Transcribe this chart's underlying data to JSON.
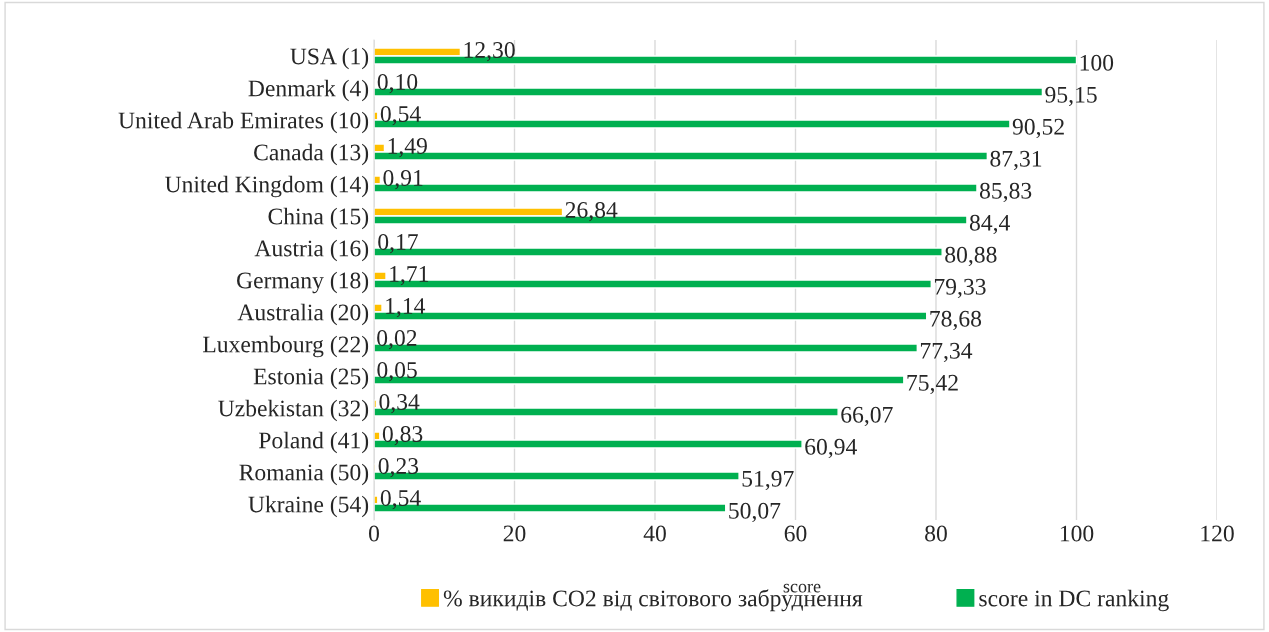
{
  "chart_data": {
    "type": "bar",
    "orientation": "horizontal",
    "categories": [
      "USA (1)",
      "Denmark (4)",
      "United Arab Emirates (10)",
      "Canada (13)",
      "United Kingdom (14)",
      "China (15)",
      "Austria (16)",
      "Germany (18)",
      "Australia (20)",
      "Luxembourg (22)",
      "Estonia (25)",
      "Uzbekistan (32)",
      "Poland (41)",
      "Romania (50)",
      "Ukraine (54)"
    ],
    "series": [
      {
        "name": "% викидів CO2 від світового забруднення",
        "color": "#ffc000",
        "values": [
          12.3,
          0.1,
          0.54,
          1.49,
          0.91,
          26.84,
          0.17,
          1.71,
          1.14,
          0.02,
          0.05,
          0.34,
          0.83,
          0.23,
          0.54
        ],
        "value_labels": [
          "12,30",
          "0,10",
          "0,54",
          "1,49",
          "0,91",
          "26,84",
          "0,17",
          "1,71",
          "1,14",
          "0,02",
          "0,05",
          "0,34",
          "0,83",
          "0,23",
          "0,54"
        ]
      },
      {
        "name": "score in DC ranking",
        "color": "#00b050",
        "values": [
          100,
          95.15,
          90.52,
          87.31,
          85.83,
          84.4,
          80.88,
          79.33,
          78.68,
          77.34,
          75.42,
          66.07,
          60.94,
          51.97,
          50.07
        ],
        "value_labels": [
          "100",
          "95,15",
          "90,52",
          "87,31",
          "85,83",
          "84,4",
          "80,88",
          "79,33",
          "78,68",
          "77,34",
          "75,42",
          "66,07",
          "60,94",
          "51,97",
          "50,07"
        ]
      }
    ],
    "xlim": [
      0,
      120
    ],
    "xticks": [
      0,
      20,
      40,
      60,
      80,
      100,
      120
    ],
    "grid": "x",
    "legend": "bottom",
    "annotations": [
      "score"
    ]
  }
}
